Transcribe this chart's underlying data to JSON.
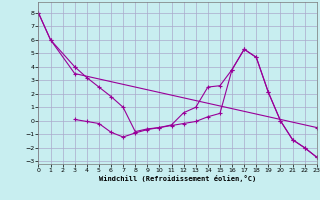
{
  "xlabel": "Windchill (Refroidissement éolien,°C)",
  "background_color": "#c8eef0",
  "line_color": "#990099",
  "grid_color": "#aaaacc",
  "xlim": [
    0,
    23
  ],
  "ylim": [
    -3.2,
    8.8
  ],
  "yticks": [
    -3,
    -2,
    -1,
    0,
    1,
    2,
    3,
    4,
    5,
    6,
    7,
    8
  ],
  "xticks": [
    0,
    1,
    2,
    3,
    4,
    5,
    6,
    7,
    8,
    9,
    10,
    11,
    12,
    13,
    14,
    15,
    16,
    17,
    18,
    19,
    20,
    21,
    22,
    23
  ],
  "s1x": [
    0,
    1,
    3
  ],
  "s1y": [
    8,
    6,
    4
  ],
  "s2x": [
    0,
    1,
    3,
    23
  ],
  "s2y": [
    8,
    6,
    3.5,
    -0.5
  ],
  "s3x": [
    3,
    4,
    5,
    6,
    7,
    8,
    9,
    10,
    11,
    12,
    13,
    14,
    15,
    16,
    17,
    18,
    19,
    20,
    21,
    22,
    23
  ],
  "s3y": [
    4.0,
    3.2,
    2.5,
    1.8,
    1.0,
    -0.8,
    -0.6,
    -0.5,
    -0.3,
    0.6,
    1.0,
    2.5,
    2.6,
    3.8,
    5.3,
    4.7,
    2.1,
    0.0,
    -1.4,
    -2.0,
    -2.7
  ],
  "s4x": [
    3,
    4,
    5,
    6,
    7,
    8,
    9,
    10,
    11,
    12,
    13,
    14,
    15,
    16,
    17,
    18,
    19,
    20,
    21,
    22,
    23
  ],
  "s4y": [
    0.1,
    -0.05,
    -0.2,
    -0.85,
    -1.2,
    -0.9,
    -0.65,
    -0.5,
    -0.35,
    -0.2,
    -0.05,
    0.3,
    0.55,
    3.8,
    5.3,
    4.7,
    2.1,
    0.0,
    -1.4,
    -2.0,
    -2.7
  ]
}
